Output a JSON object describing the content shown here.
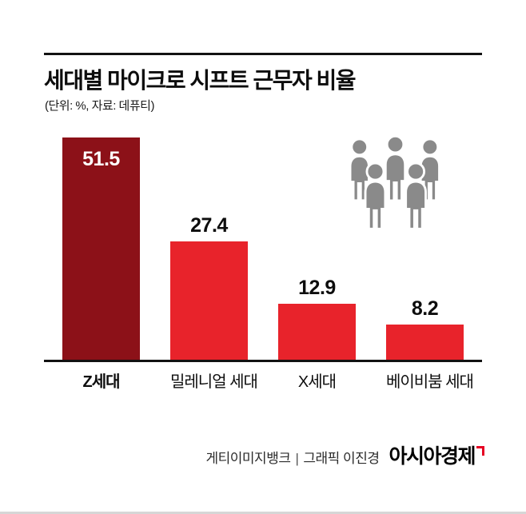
{
  "title": "세대별 마이크로 시프트 근무자 비율",
  "subtitle": "(단위: %, 자료: 데퓨티)",
  "chart_data": {
    "type": "bar",
    "title": "세대별 마이크로 시프트 근무자 비율",
    "unit": "%",
    "source": "데퓨티",
    "categories": [
      "Z세대",
      "밀레니얼 세대",
      "X세대",
      "베이비붐 세대"
    ],
    "values": [
      51.5,
      27.4,
      12.9,
      8.2
    ],
    "ylim": [
      0,
      52
    ],
    "grid": false,
    "legend": "none",
    "bar_colors": [
      "#8C1118",
      "#E8232B",
      "#E8232B",
      "#E8232B"
    ],
    "value_label_inside": [
      true,
      false,
      false,
      false
    ],
    "emphasized_category": "Z세대"
  },
  "icons": {
    "people_group": "people-group-icon",
    "people_color": "#8A8A8A"
  },
  "footer": {
    "credit": "게티이미지뱅크",
    "separator": "|",
    "graphic_credit": "그래픽 이진경",
    "logo": "아시아경제"
  },
  "colors": {
    "dark_red": "#8C1118",
    "red": "#E8232B",
    "black": "#121212",
    "logo_mark_red": "#e60023",
    "icon_gray": "#8A8A8A"
  }
}
